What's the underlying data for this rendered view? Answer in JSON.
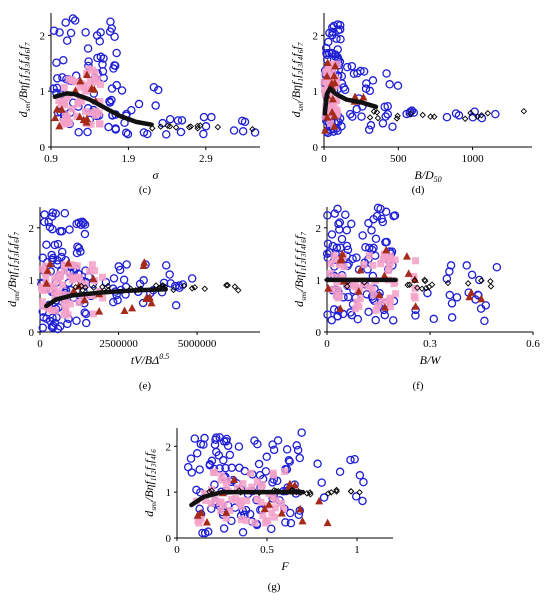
{
  "chart_data": [
    {
      "type": "scatter",
      "panel_label": "(c)",
      "xlabel": "σ",
      "ylabel": "dsmi/Bηf1f2f3f4f6f7",
      "xlim": [
        0.9,
        3.6
      ],
      "ylim": [
        0,
        2.4
      ],
      "x_ticks": [
        "0.9",
        "1.9",
        "2.9"
      ],
      "y_ticks": [
        "0",
        "1",
        "2"
      ],
      "series": [
        {
          "marker": "blue-circle",
          "spread": [
            [
              0.93,
              1.75,
              0.25,
              2.35,
              70
            ],
            [
              1.75,
              2.35,
              0.2,
              1.1,
              14
            ],
            [
              2.35,
              3.6,
              0.2,
              0.55,
              14
            ]
          ]
        },
        {
          "marker": "pink-square",
          "spread": [
            [
              0.95,
              1.55,
              0.4,
              1.4,
              50
            ]
          ]
        },
        {
          "marker": "red-triangle",
          "spread": [
            [
              0.95,
              1.5,
              0.3,
              1.3,
              14
            ]
          ]
        },
        {
          "marker": "black-diamond",
          "spread": [
            [
              2.0,
              3.6,
              0.3,
              0.4,
              12
            ]
          ]
        }
      ],
      "trend": [
        [
          0.95,
          0.9
        ],
        [
          1.1,
          0.96
        ],
        [
          1.2,
          0.95
        ],
        [
          1.4,
          0.85
        ],
        [
          1.6,
          0.7
        ],
        [
          1.8,
          0.55
        ],
        [
          2.0,
          0.45
        ],
        [
          2.2,
          0.4
        ]
      ]
    },
    {
      "type": "scatter",
      "panel_label": "(d)",
      "xlabel": "B/D50",
      "ylabel": "dsmi/Bηf1f2f3f4f6f7",
      "xlim": [
        0,
        1400
      ],
      "ylim": [
        0,
        2.4
      ],
      "x_ticks": [
        "0",
        "500",
        "1000"
      ],
      "y_ticks": [
        "0",
        "1",
        "2"
      ],
      "series": [
        {
          "marker": "blue-circle",
          "spread": [
            [
              0,
              120,
              0.2,
              2.2,
              70
            ],
            [
              120,
              500,
              0.3,
              1.6,
              30
            ],
            [
              500,
              1380,
              0.5,
              0.7,
              12
            ]
          ]
        },
        {
          "marker": "pink-square",
          "spread": [
            [
              0,
              90,
              0.4,
              1.5,
              50
            ]
          ]
        },
        {
          "marker": "red-triangle",
          "spread": [
            [
              0,
              80,
              0.3,
              1.6,
              14
            ],
            [
              200,
              300,
              0.8,
              0.95,
              3
            ]
          ]
        },
        {
          "marker": "black-diamond",
          "spread": [
            [
              150,
              1380,
              0.5,
              0.65,
              16
            ]
          ]
        }
      ],
      "trend": [
        [
          5,
          0.6
        ],
        [
          20,
          0.95
        ],
        [
          40,
          1.05
        ],
        [
          80,
          0.95
        ],
        [
          150,
          0.85
        ],
        [
          250,
          0.8
        ],
        [
          350,
          0.72
        ]
      ]
    },
    {
      "type": "scatter",
      "panel_label": "(e)",
      "xlabel": "tV/BΔ0.5",
      "ylabel": "dsmi/Bηf1f2f3f4f6f7",
      "xlim": [
        0,
        7000000
      ],
      "ylim": [
        0,
        2.4
      ],
      "x_ticks": [
        "0",
        "2500000",
        "5000000"
      ],
      "y_ticks": [
        "0",
        "1",
        "2"
      ],
      "series": [
        {
          "marker": "blue-circle",
          "spread": [
            [
              0,
              1500000,
              0.05,
              2.3,
              90
            ],
            [
              1500000,
              5000000,
              0.5,
              1.3,
              35
            ]
          ]
        },
        {
          "marker": "pink-square",
          "spread": [
            [
              0,
              2000000,
              0.3,
              1.3,
              60
            ]
          ]
        },
        {
          "marker": "red-triangle",
          "spread": [
            [
              0,
              4500000,
              0.4,
              1.5,
              18
            ]
          ]
        },
        {
          "marker": "black-diamond",
          "spread": [
            [
              1000000,
              6500000,
              0.8,
              0.9,
              28
            ]
          ]
        }
      ],
      "trend": [
        [
          200000,
          0.5
        ],
        [
          500000,
          0.62
        ],
        [
          1000000,
          0.7
        ],
        [
          2000000,
          0.76
        ],
        [
          3000000,
          0.8
        ],
        [
          4000000,
          0.82
        ]
      ]
    },
    {
      "type": "scatter",
      "panel_label": "(f)",
      "xlabel": "B/W",
      "ylabel": "dsmi/Bηf1f2f3f4f6f7",
      "xlim": [
        0,
        0.6
      ],
      "ylim": [
        0,
        2.4
      ],
      "x_ticks": [
        "0",
        "0.3",
        "0.6"
      ],
      "y_ticks": [
        "0",
        "1",
        "2"
      ],
      "series": [
        {
          "marker": "blue-circle",
          "spread": [
            [
              0,
              0.2,
              0.2,
              2.4,
              100
            ],
            [
              0.25,
              0.5,
              0.2,
              1.3,
              22
            ]
          ]
        },
        {
          "marker": "pink-square",
          "spread": [
            [
              0,
              0.2,
              0.4,
              1.5,
              60
            ],
            [
              0.25,
              0.26,
              0.5,
              1.6,
              5
            ]
          ]
        },
        {
          "marker": "red-triangle",
          "spread": [
            [
              0,
              0.26,
              0.3,
              1.6,
              16
            ],
            [
              0.4,
              0.5,
              0.5,
              0.8,
              3
            ]
          ]
        },
        {
          "marker": "black-diamond",
          "spread": [
            [
              0.05,
              0.5,
              0.8,
              1.0,
              18
            ]
          ]
        }
      ],
      "trend": [
        [
          0.0,
          1.0
        ],
        [
          0.1,
          1.0
        ],
        [
          0.2,
          1.0
        ]
      ]
    },
    {
      "type": "scatter",
      "panel_label": "(g)",
      "xlabel": "F",
      "ylabel": "dsmi/Bηf1f2f3f4f6",
      "xlim": [
        0,
        1.2
      ],
      "ylim": [
        0,
        2.4
      ],
      "x_ticks": [
        "0",
        "0.5",
        "1"
      ],
      "y_ticks": [
        "0",
        "1",
        "2"
      ],
      "series": [
        {
          "marker": "blue-circle",
          "spread": [
            [
              0.05,
              0.7,
              0.1,
              2.3,
              110
            ],
            [
              0.75,
              1.05,
              0.4,
              1.75,
              10
            ]
          ]
        },
        {
          "marker": "pink-square",
          "spread": [
            [
              0.1,
              0.6,
              0.3,
              1.5,
              60
            ]
          ]
        },
        {
          "marker": "red-triangle",
          "spread": [
            [
              0.1,
              0.85,
              0.3,
              1.3,
              16
            ]
          ]
        },
        {
          "marker": "black-diamond",
          "spread": [
            [
              0.15,
              1.05,
              0.95,
              1.05,
              24
            ]
          ]
        }
      ],
      "trend": [
        [
          0.08,
          0.72
        ],
        [
          0.15,
          0.9
        ],
        [
          0.25,
          1.0
        ],
        [
          0.4,
          1.0
        ],
        [
          0.55,
          1.0
        ],
        [
          0.7,
          1.0
        ]
      ]
    }
  ]
}
